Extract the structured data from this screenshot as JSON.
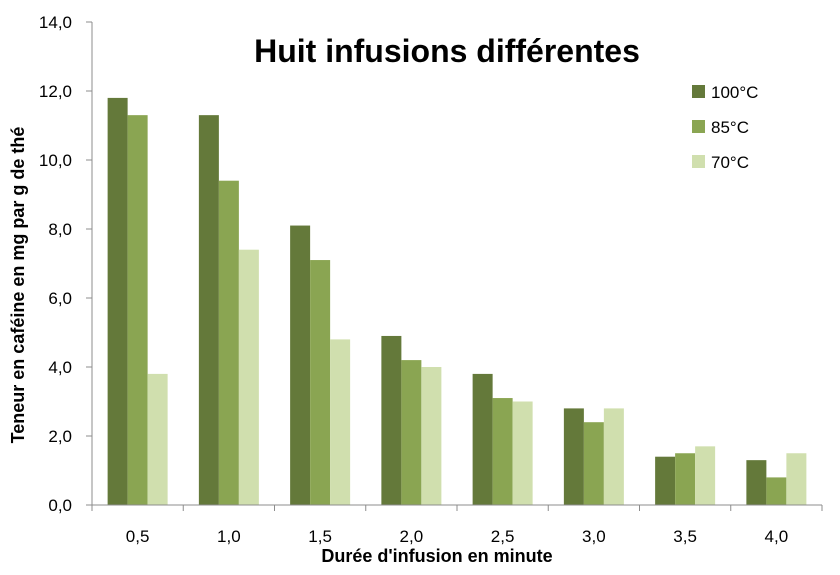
{
  "chart_data": {
    "type": "bar",
    "title": "Huit infusions différentes",
    "xlabel": "Durée d'infusion en minute",
    "ylabel": "Teneur en caféine en mg par g de thé",
    "categories": [
      "0,5",
      "1,0",
      "1,5",
      "2,0",
      "2,5",
      "3,0",
      "3,5",
      "4,0"
    ],
    "ylim": [
      0,
      14
    ],
    "yticks": [
      "0,0",
      "2,0",
      "4,0",
      "6,0",
      "8,0",
      "10,0",
      "12,0",
      "14,0"
    ],
    "grid": false,
    "legend_position": "top-right",
    "series": [
      {
        "name": "100°C",
        "color": "#64793a",
        "values": [
          11.8,
          11.3,
          8.1,
          4.9,
          3.8,
          2.8,
          1.4,
          1.3
        ]
      },
      {
        "name": "85°C",
        "color": "#8aa552",
        "values": [
          11.3,
          9.4,
          7.1,
          4.2,
          3.1,
          2.4,
          1.5,
          0.8
        ]
      },
      {
        "name": "70°C",
        "color": "#d0dfae",
        "values": [
          3.8,
          7.4,
          4.8,
          4.0,
          3.0,
          2.8,
          1.7,
          1.5
        ]
      }
    ]
  }
}
